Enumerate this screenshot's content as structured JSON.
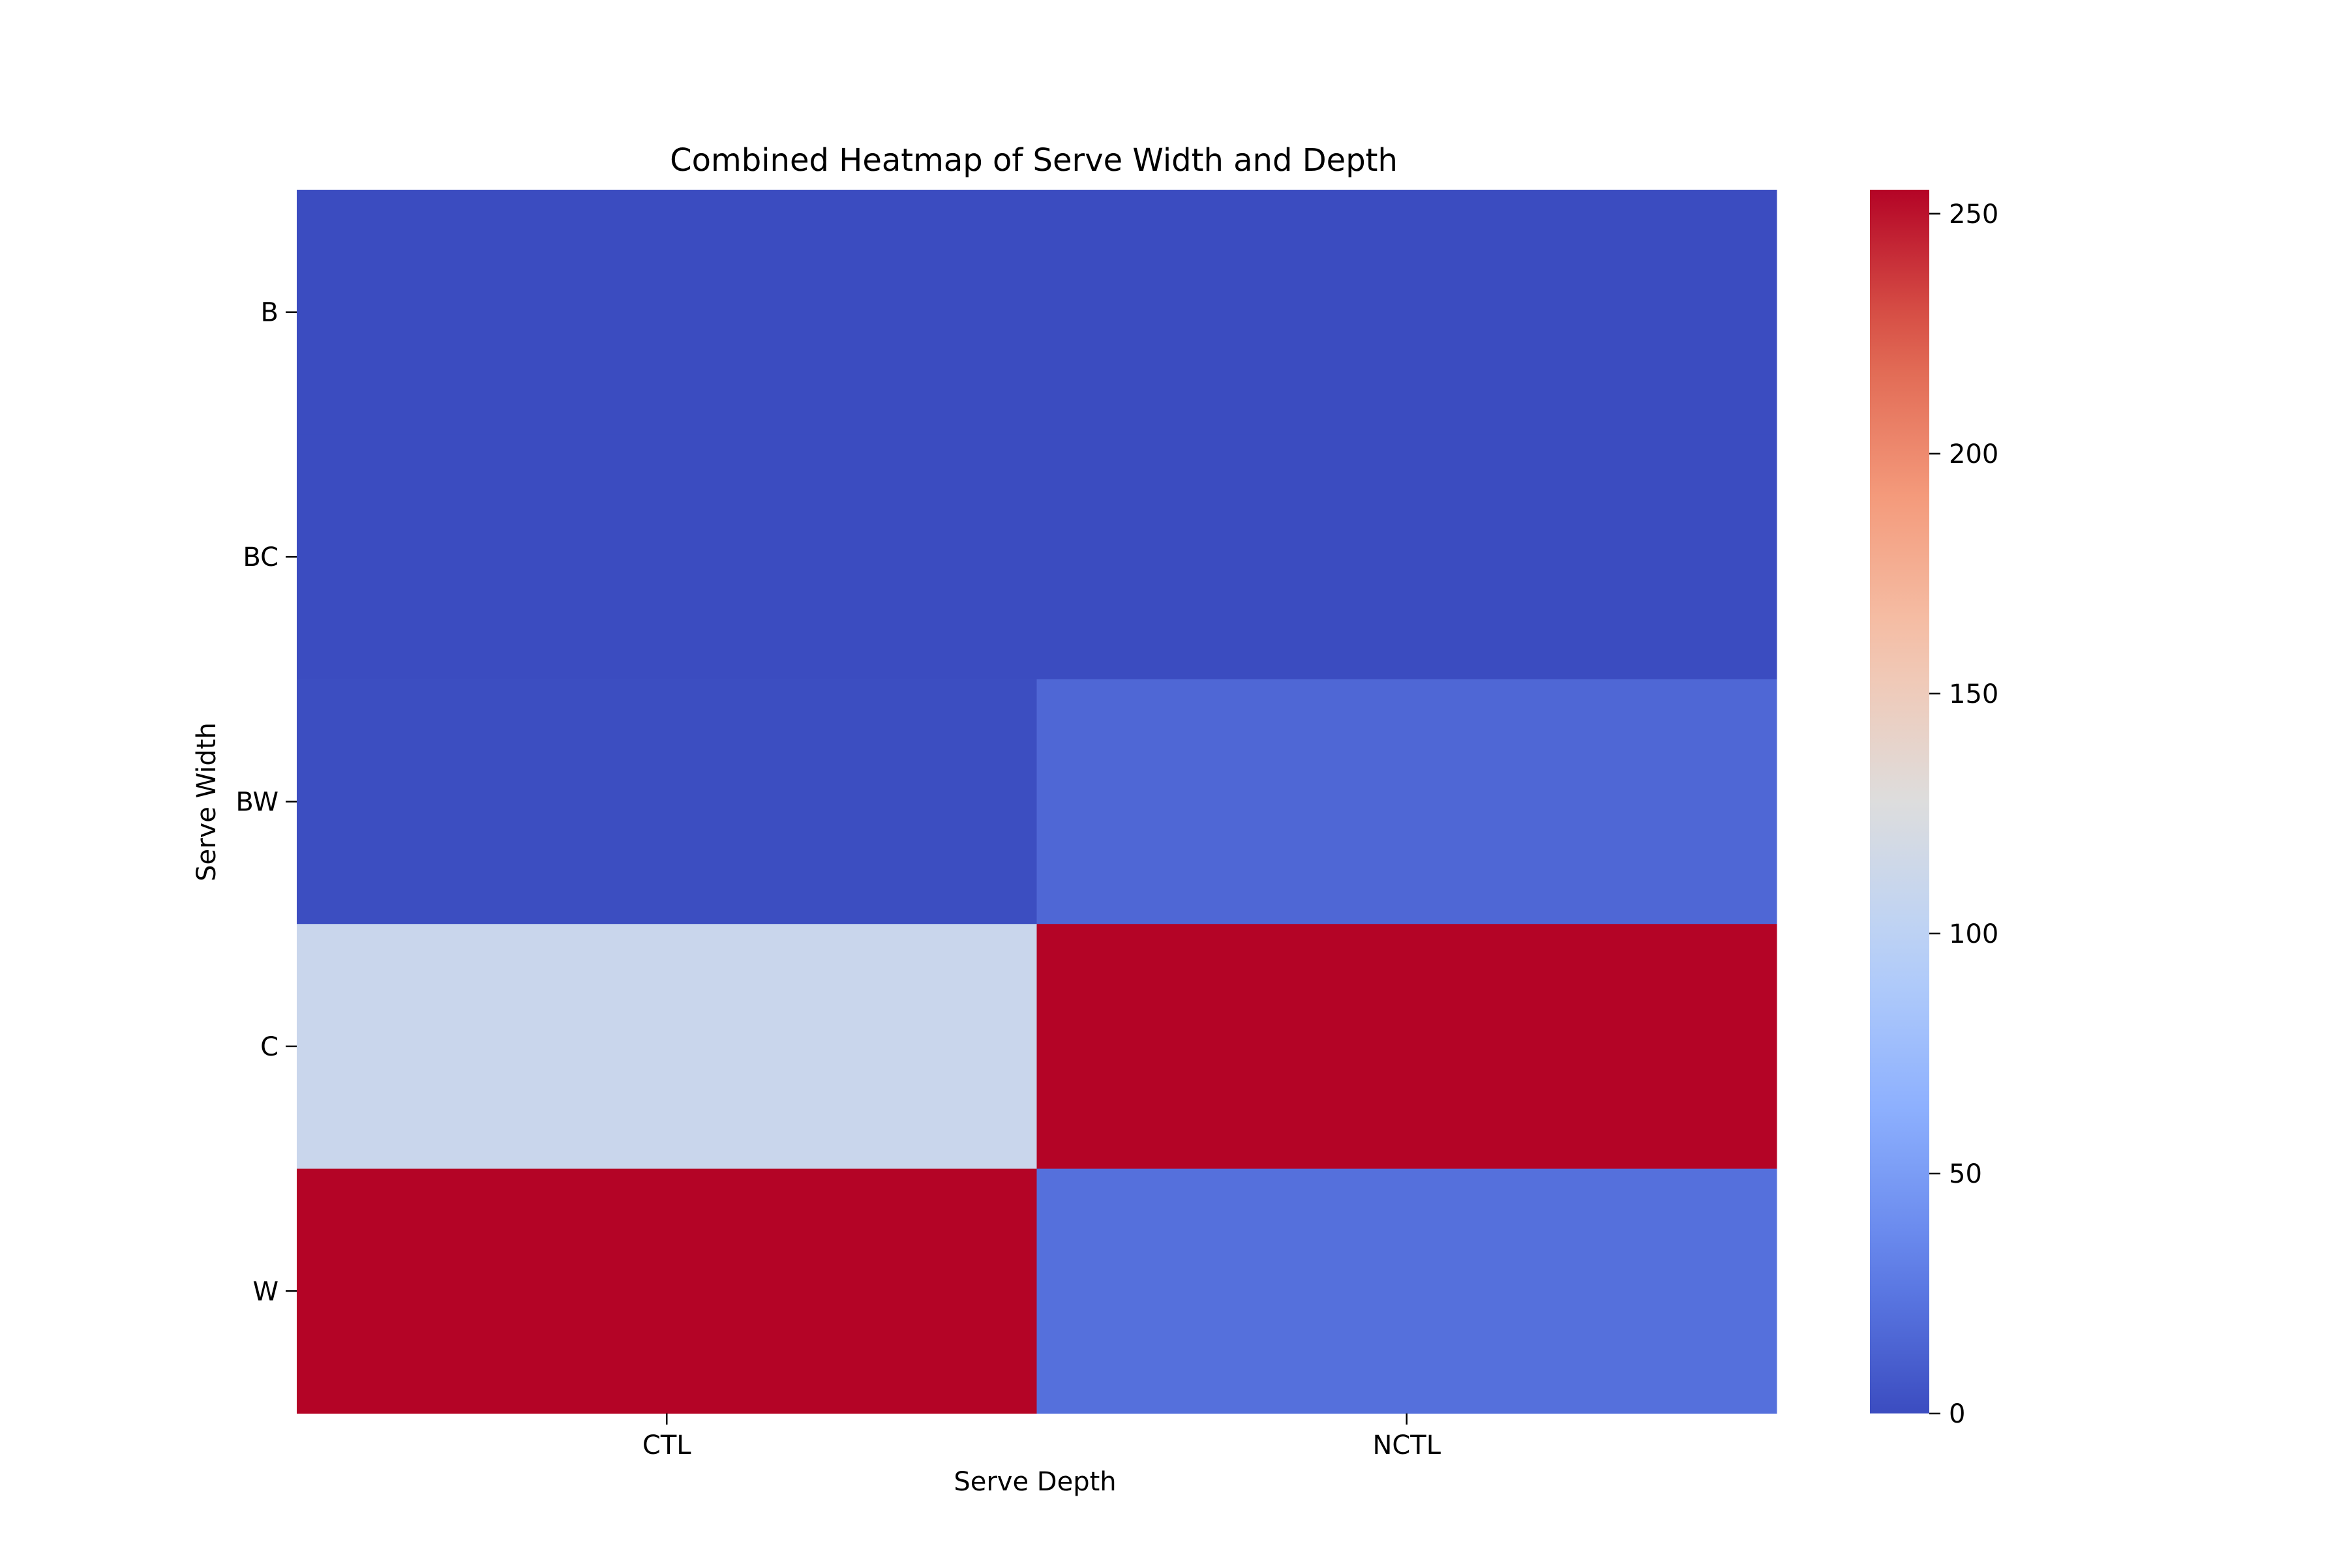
{
  "chart_data": {
    "type": "heatmap",
    "title": "Combined Heatmap of Serve Width and Depth",
    "xlabel": "Serve Depth",
    "ylabel": "Serve Width",
    "x_categories": [
      "CTL",
      "NCTL"
    ],
    "y_categories": [
      "B",
      "BC",
      "BW",
      "C",
      "W"
    ],
    "values": [
      [
        0,
        0
      ],
      [
        0,
        0
      ],
      [
        1,
        16
      ],
      [
        110,
        255
      ],
      [
        255,
        21
      ]
    ],
    "colormap": "coolwarm",
    "vmin": 0,
    "vmax": 255,
    "colorbar_ticks": [
      0,
      50,
      100,
      150,
      200,
      250
    ],
    "colorbar_tick_labels": [
      "0",
      "50",
      "100",
      "150",
      "200",
      "250"
    ],
    "legend_placement": "right",
    "grid": false
  }
}
